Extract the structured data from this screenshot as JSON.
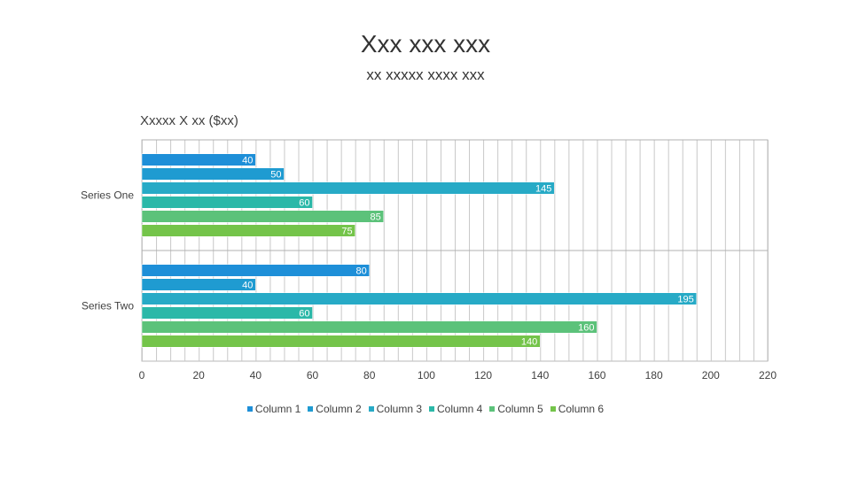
{
  "slide": {
    "title": "Xxx xxx xxx",
    "subtitle": "xx xxxxx xxxx xxx"
  },
  "chart_data": {
    "type": "bar",
    "orientation": "horizontal",
    "title": "Xxxxx X xx ($xx)",
    "categories": [
      "Series One",
      "Series Two"
    ],
    "series": [
      {
        "name": "Column 1",
        "values": [
          40,
          80
        ],
        "color": "#1e8fd8"
      },
      {
        "name": "Column 2",
        "values": [
          50,
          40
        ],
        "color": "#1f9bd1"
      },
      {
        "name": "Column 3",
        "values": [
          145,
          195
        ],
        "color": "#27aac6"
      },
      {
        "name": "Column 4",
        "values": [
          60,
          60
        ],
        "color": "#2bb8a8"
      },
      {
        "name": "Column 5",
        "values": [
          85,
          160
        ],
        "color": "#5cc27a"
      },
      {
        "name": "Column 6",
        "values": [
          75,
          140
        ],
        "color": "#74c44a"
      }
    ],
    "xlim": [
      0,
      220
    ],
    "xticks": [
      0,
      20,
      40,
      60,
      80,
      100,
      120,
      140,
      160,
      180,
      200,
      220
    ],
    "grid": true,
    "data_labels": true,
    "legend_position": "bottom"
  }
}
